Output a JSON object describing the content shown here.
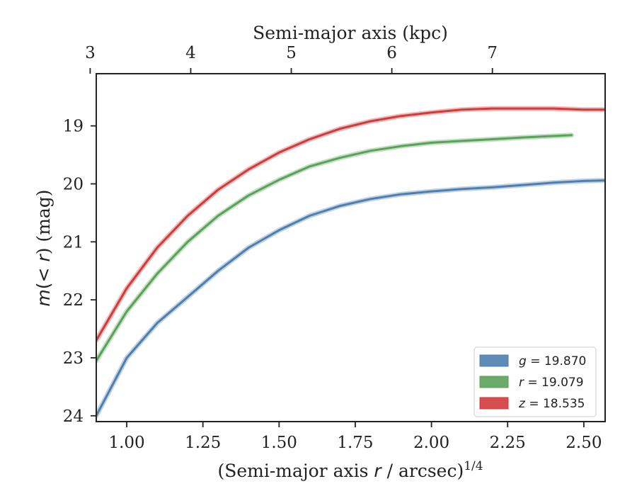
{
  "chart_data": {
    "type": "line",
    "xlabel": "(Semi-major axis r / arcsec)^1/4",
    "xlabel_parts": {
      "prefix": "(Semi-major axis ",
      "var": "r",
      "middle": " / arcsec)",
      "exponent": "1/4"
    },
    "ylabel": "m(<r) (mag)",
    "ylabel_parts": {
      "m": "m",
      "lt": "(< ",
      "r": "r",
      "rest": ") (mag)"
    },
    "top_xlabel": "Semi-major axis (kpc)",
    "xlim": [
      0.9,
      2.57
    ],
    "ylim": [
      24.1,
      18.1
    ],
    "y_inverted": true,
    "x_ticks": [
      "1.00",
      "1.25",
      "1.50",
      "1.75",
      "2.00",
      "2.25",
      "2.50"
    ],
    "x_tick_values": [
      1.0,
      1.25,
      1.5,
      1.75,
      2.0,
      2.25,
      2.5
    ],
    "y_ticks": [
      "19",
      "20",
      "21",
      "22",
      "23",
      "24"
    ],
    "y_tick_values": [
      19,
      20,
      21,
      22,
      23,
      24
    ],
    "top_ticks": [
      "3",
      "4",
      "5",
      "6",
      "7"
    ],
    "top_tick_positions": [
      0.88,
      1.21,
      1.54,
      1.87,
      2.2
    ],
    "legend_placement": "lower-right",
    "series": [
      {
        "name": "g = 19.870",
        "band": "g",
        "value": "19.870",
        "color": "#4e7fae",
        "x": [
          0.9,
          1.0,
          1.1,
          1.2,
          1.3,
          1.4,
          1.5,
          1.6,
          1.7,
          1.8,
          1.9,
          2.0,
          2.1,
          2.2,
          2.3,
          2.4,
          2.5,
          2.57
        ],
        "y": [
          24.0,
          23.0,
          22.4,
          21.95,
          21.5,
          21.1,
          20.8,
          20.55,
          20.38,
          20.26,
          20.18,
          20.13,
          20.09,
          20.06,
          20.02,
          19.98,
          19.95,
          19.94
        ]
      },
      {
        "name": "r = 19.079",
        "band": "r",
        "value": "19.079",
        "color": "#5aa25a",
        "x": [
          0.9,
          1.0,
          1.1,
          1.2,
          1.3,
          1.4,
          1.5,
          1.6,
          1.7,
          1.8,
          1.9,
          2.0,
          2.1,
          2.2,
          2.3,
          2.46
        ],
        "y": [
          23.05,
          22.2,
          21.55,
          21.0,
          20.55,
          20.2,
          19.93,
          19.7,
          19.55,
          19.43,
          19.35,
          19.29,
          19.26,
          19.23,
          19.2,
          19.16
        ]
      },
      {
        "name": "z = 18.535",
        "band": "z",
        "value": "18.535",
        "color": "#d13b3b",
        "x": [
          0.9,
          1.0,
          1.1,
          1.2,
          1.3,
          1.4,
          1.5,
          1.6,
          1.7,
          1.8,
          1.9,
          2.0,
          2.1,
          2.2,
          2.3,
          2.4,
          2.5,
          2.57
        ],
        "y": [
          22.7,
          21.8,
          21.1,
          20.55,
          20.1,
          19.75,
          19.46,
          19.23,
          19.05,
          18.92,
          18.83,
          18.77,
          18.72,
          18.7,
          18.7,
          18.7,
          18.72,
          18.72
        ]
      }
    ]
  }
}
